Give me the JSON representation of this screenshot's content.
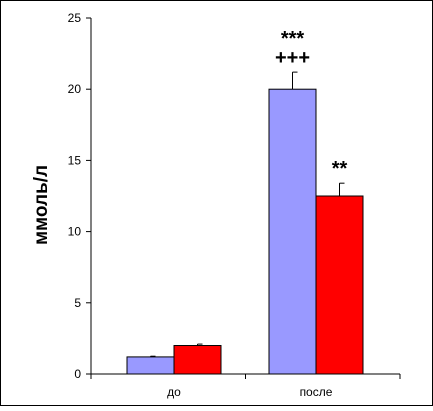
{
  "chart_data": {
    "type": "bar",
    "categories": [
      "до",
      "после"
    ],
    "series": [
      {
        "values": [
          1.2,
          20.0
        ],
        "errors": [
          0.05,
          1.2
        ],
        "color": "#9999ff"
      },
      {
        "values": [
          2.0,
          12.5
        ],
        "errors": [
          0.1,
          0.9
        ],
        "color": "#ff0000"
      }
    ],
    "annotations": [
      {
        "category": 1,
        "series": 0,
        "lines": [
          "***",
          "+++"
        ]
      },
      {
        "category": 1,
        "series": 1,
        "lines": [
          "**"
        ]
      }
    ],
    "ylabel": "ммоль/л",
    "ylim": [
      0,
      25
    ],
    "yticks": [
      0,
      5,
      10,
      15,
      20,
      25
    ],
    "grid": false,
    "legend": "none"
  }
}
